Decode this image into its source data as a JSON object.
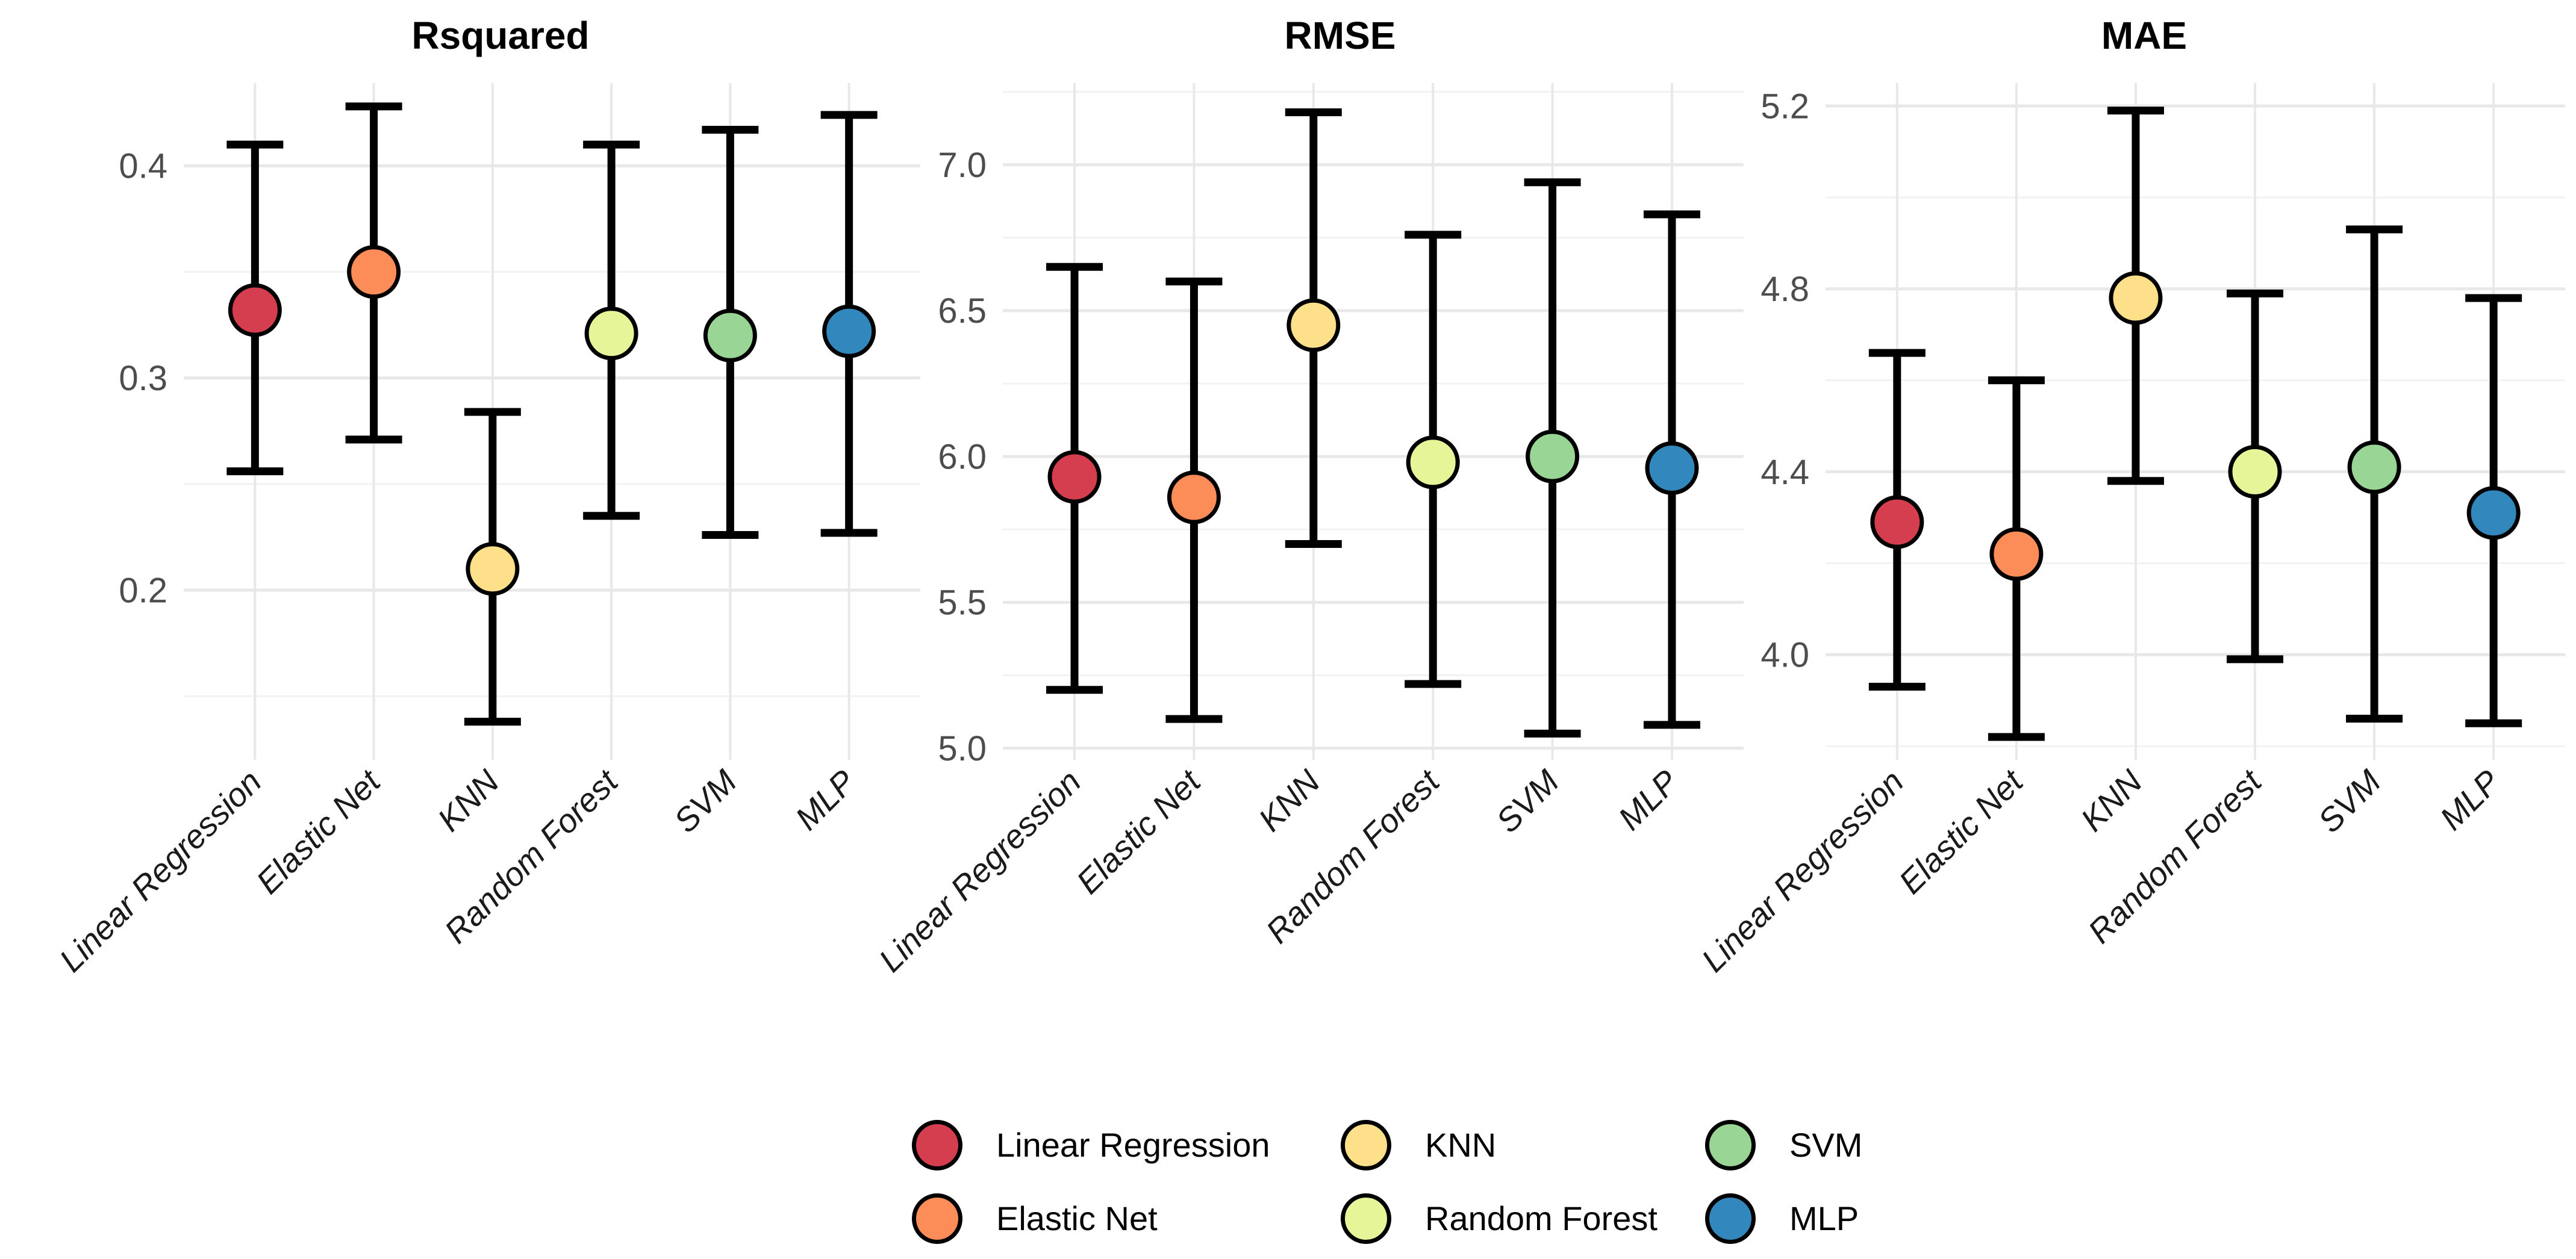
{
  "page": {
    "background": "#FFFFFF",
    "kind": "model-performance-comparison-figure"
  },
  "styles": {
    "grid_major_color": "#E8E8E8",
    "grid_minor_color": "#F2F2F2",
    "grid_vertical_color": "#E8E8E8",
    "axis_tick_text_color": "#4D4D4D",
    "x_tick_text_color": "#1A1A1A",
    "title_color": "#000000",
    "errorbar_color": "#000000",
    "point_outline_color": "#000000"
  },
  "palette": {
    "Linear Regression": "#D53E4F",
    "Elastic Net": "#FC8D59",
    "KNN": "#FEE08B",
    "Random Forest": "#E6F598",
    "SVM": "#99D594",
    "MLP": "#3288BD"
  },
  "chart_data": [
    {
      "type": "scatter",
      "subtype": "point-with-error-bars",
      "title": "Rsquared",
      "categories": [
        "Linear Regression",
        "Elastic Net",
        "KNN",
        "Random Forest",
        "SVM",
        "MLP"
      ],
      "points": [
        {
          "model": "Linear Regression",
          "mean": 0.332,
          "lower": 0.256,
          "upper": 0.41
        },
        {
          "model": "Elastic Net",
          "mean": 0.35,
          "lower": 0.271,
          "upper": 0.428
        },
        {
          "model": "KNN",
          "mean": 0.21,
          "lower": 0.138,
          "upper": 0.284
        },
        {
          "model": "Random Forest",
          "mean": 0.321,
          "lower": 0.235,
          "upper": 0.41
        },
        {
          "model": "SVM",
          "mean": 0.32,
          "lower": 0.226,
          "upper": 0.417
        },
        {
          "model": "MLP",
          "mean": 0.322,
          "lower": 0.227,
          "upper": 0.424
        }
      ],
      "ylim": [
        0.12,
        0.439
      ],
      "yticks": [
        0.2,
        0.3,
        0.4
      ],
      "yticks_minor": [
        0.15,
        0.25,
        0.35
      ],
      "ytick_decimals": 1,
      "grid": true,
      "legend_position": "none",
      "xlabel": "",
      "ylabel": ""
    },
    {
      "type": "scatter",
      "subtype": "point-with-error-bars",
      "title": "RMSE",
      "categories": [
        "Linear Regression",
        "Elastic Net",
        "KNN",
        "Random Forest",
        "SVM",
        "MLP"
      ],
      "points": [
        {
          "model": "Linear Regression",
          "mean": 5.93,
          "lower": 5.2,
          "upper": 6.65
        },
        {
          "model": "Elastic Net",
          "mean": 5.86,
          "lower": 5.1,
          "upper": 6.6
        },
        {
          "model": "KNN",
          "mean": 6.45,
          "lower": 5.7,
          "upper": 7.18
        },
        {
          "model": "Random Forest",
          "mean": 5.98,
          "lower": 5.22,
          "upper": 6.76
        },
        {
          "model": "SVM",
          "mean": 6.0,
          "lower": 5.05,
          "upper": 6.94
        },
        {
          "model": "MLP",
          "mean": 5.96,
          "lower": 5.08,
          "upper": 6.83
        }
      ],
      "ylim": [
        4.96,
        7.28
      ],
      "yticks": [
        5.0,
        5.5,
        6.0,
        6.5,
        7.0
      ],
      "yticks_minor": [
        5.25,
        5.75,
        6.25,
        6.75,
        7.25
      ],
      "ytick_decimals": 1,
      "grid": true,
      "legend_position": "none",
      "xlabel": "",
      "ylabel": ""
    },
    {
      "type": "scatter",
      "subtype": "point-with-error-bars",
      "title": "MAE",
      "categories": [
        "Linear Regression",
        "Elastic Net",
        "KNN",
        "Random Forest",
        "SVM",
        "MLP"
      ],
      "points": [
        {
          "model": "Linear Regression",
          "mean": 4.29,
          "lower": 3.93,
          "upper": 4.66
        },
        {
          "model": "Elastic Net",
          "mean": 4.22,
          "lower": 3.82,
          "upper": 4.6
        },
        {
          "model": "KNN",
          "mean": 4.78,
          "lower": 4.38,
          "upper": 5.19
        },
        {
          "model": "Random Forest",
          "mean": 4.4,
          "lower": 3.99,
          "upper": 4.79
        },
        {
          "model": "SVM",
          "mean": 4.41,
          "lower": 3.86,
          "upper": 4.93
        },
        {
          "model": "MLP",
          "mean": 4.31,
          "lower": 3.85,
          "upper": 4.78
        }
      ],
      "ylim": [
        3.77,
        5.25
      ],
      "yticks": [
        4.0,
        4.4,
        4.8,
        5.2
      ],
      "yticks_minor": [
        3.8,
        4.2,
        4.6,
        5.0
      ],
      "ytick_decimals": 1,
      "grid": true,
      "legend_position": "none",
      "xlabel": "",
      "ylabel": ""
    }
  ],
  "legend": {
    "position": "bottom-center",
    "items": [
      {
        "label": "Linear Regression"
      },
      {
        "label": "KNN"
      },
      {
        "label": "SVM"
      },
      {
        "label": "Elastic Net"
      },
      {
        "label": "Random Forest"
      },
      {
        "label": "MLP"
      }
    ]
  }
}
